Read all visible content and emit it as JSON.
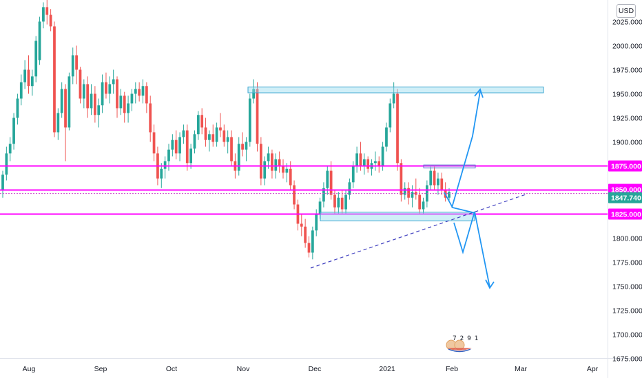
{
  "chart_data": {
    "type": "candlestick",
    "currency": "USD",
    "ylim": [
      1669,
      2036
    ],
    "y_ticks": [
      {
        "value": 2025,
        "label": "2025.000"
      },
      {
        "value": 2000,
        "label": "2000.000"
      },
      {
        "value": 1975,
        "label": "1975.000"
      },
      {
        "value": 1950,
        "label": "1950.000"
      },
      {
        "value": 1925,
        "label": "1925.000"
      },
      {
        "value": 1900,
        "label": "1900.000"
      },
      {
        "value": 1800,
        "label": "1800.000"
      },
      {
        "value": 1775,
        "label": "1775.000"
      },
      {
        "value": 1750,
        "label": "1750.000"
      },
      {
        "value": 1725,
        "label": "1725.000"
      },
      {
        "value": 1700,
        "label": "1700.000"
      },
      {
        "value": 1675,
        "label": "1675.000"
      }
    ],
    "x_ticks": [
      "Aug",
      "Sep",
      "Oct",
      "Nov",
      "Dec",
      "2021",
      "Feb",
      "Mar",
      "Apr"
    ],
    "price_labels": [
      {
        "value": 1875,
        "label": "1875.000",
        "color": "#ff00ff"
      },
      {
        "value": 1850,
        "label": "1850.000",
        "color": "#ff00ff"
      },
      {
        "value": 1847.74,
        "label": "1847.740",
        "color": "#26a69a"
      },
      {
        "value": 1825,
        "label": "1825.000",
        "color": "#ff00ff"
      }
    ],
    "candles": [
      [
        1850,
        1870,
        1842,
        1866
      ],
      [
        1866,
        1895,
        1860,
        1888
      ],
      [
        1888,
        1905,
        1880,
        1898
      ],
      [
        1898,
        1930,
        1892,
        1925
      ],
      [
        1925,
        1950,
        1918,
        1945
      ],
      [
        1945,
        1970,
        1938,
        1962
      ],
      [
        1962,
        1985,
        1955,
        1975
      ],
      [
        1975,
        1990,
        1950,
        1958
      ],
      [
        1958,
        1975,
        1948,
        1968
      ],
      [
        1968,
        2010,
        1962,
        2005
      ],
      [
        1985,
        2030,
        1980,
        2025
      ],
      [
        2025,
        2045,
        2018,
        2040
      ],
      [
        2040,
        2050,
        2022,
        2032
      ],
      [
        2032,
        2038,
        2015,
        2020
      ],
      [
        2020,
        2025,
        1905,
        1910
      ],
      [
        1910,
        1935,
        1902,
        1930
      ],
      [
        1930,
        1962,
        1925,
        1955
      ],
      [
        1955,
        1960,
        1880,
        1915
      ],
      [
        1915,
        1972,
        1912,
        1968
      ],
      [
        1968,
        1998,
        1960,
        1990
      ],
      [
        1990,
        2000,
        1960,
        1975
      ],
      [
        1975,
        1978,
        1940,
        1945
      ],
      [
        1945,
        1965,
        1935,
        1960
      ],
      [
        1960,
        1968,
        1925,
        1935
      ],
      [
        1935,
        1960,
        1928,
        1950
      ],
      [
        1950,
        1958,
        1920,
        1928
      ],
      [
        1928,
        1945,
        1915,
        1938
      ],
      [
        1938,
        1970,
        1930,
        1962
      ],
      [
        1962,
        1972,
        1945,
        1950
      ],
      [
        1950,
        1968,
        1940,
        1960
      ],
      [
        1960,
        1975,
        1950,
        1965
      ],
      [
        1965,
        1968,
        1925,
        1935
      ],
      [
        1935,
        1955,
        1928,
        1948
      ],
      [
        1948,
        1952,
        1920,
        1930
      ],
      [
        1930,
        1948,
        1920,
        1940
      ],
      [
        1940,
        1955,
        1932,
        1950
      ],
      [
        1950,
        1962,
        1940,
        1955
      ],
      [
        1955,
        1962,
        1942,
        1948
      ],
      [
        1948,
        1965,
        1940,
        1958
      ],
      [
        1958,
        1962,
        1930,
        1940
      ],
      [
        1940,
        1948,
        1900,
        1910
      ],
      [
        1910,
        1918,
        1880,
        1888
      ],
      [
        1888,
        1895,
        1855,
        1862
      ],
      [
        1862,
        1878,
        1852,
        1872
      ],
      [
        1872,
        1885,
        1862,
        1880
      ],
      [
        1880,
        1898,
        1870,
        1892
      ],
      [
        1892,
        1908,
        1885,
        1902
      ],
      [
        1902,
        1912,
        1882,
        1888
      ],
      [
        1888,
        1910,
        1880,
        1905
      ],
      [
        1905,
        1918,
        1898,
        1912
      ],
      [
        1912,
        1918,
        1870,
        1878
      ],
      [
        1878,
        1898,
        1872,
        1893
      ],
      [
        1893,
        1912,
        1888,
        1908
      ],
      [
        1908,
        1932,
        1902,
        1928
      ],
      [
        1928,
        1935,
        1908,
        1915
      ],
      [
        1915,
        1925,
        1895,
        1902
      ],
      [
        1902,
        1912,
        1890,
        1908
      ],
      [
        1908,
        1918,
        1895,
        1900
      ],
      [
        1900,
        1920,
        1895,
        1915
      ],
      [
        1915,
        1930,
        1905,
        1912
      ],
      [
        1912,
        1918,
        1895,
        1900
      ],
      [
        1900,
        1912,
        1888,
        1905
      ],
      [
        1905,
        1912,
        1875,
        1880
      ],
      [
        1880,
        1888,
        1862,
        1870
      ],
      [
        1870,
        1905,
        1865,
        1898
      ],
      [
        1898,
        1910,
        1885,
        1892
      ],
      [
        1892,
        1905,
        1880,
        1900
      ],
      [
        1900,
        1950,
        1895,
        1945
      ],
      [
        1945,
        1965,
        1940,
        1955
      ],
      [
        1955,
        1962,
        1890,
        1898
      ],
      [
        1898,
        1905,
        1855,
        1862
      ],
      [
        1862,
        1885,
        1855,
        1880
      ],
      [
        1880,
        1895,
        1872,
        1888
      ],
      [
        1888,
        1892,
        1862,
        1870
      ],
      [
        1870,
        1888,
        1862,
        1882
      ],
      [
        1882,
        1890,
        1868,
        1875
      ],
      [
        1875,
        1882,
        1862,
        1868
      ],
      [
        1868,
        1878,
        1858,
        1872
      ],
      [
        1872,
        1880,
        1850,
        1855
      ],
      [
        1855,
        1860,
        1830,
        1835
      ],
      [
        1835,
        1840,
        1808,
        1815
      ],
      [
        1815,
        1825,
        1802,
        1812
      ],
      [
        1812,
        1820,
        1790,
        1795
      ],
      [
        1795,
        1802,
        1780,
        1785
      ],
      [
        1785,
        1812,
        1778,
        1808
      ],
      [
        1808,
        1830,
        1802,
        1825
      ],
      [
        1825,
        1842,
        1820,
        1838
      ],
      [
        1838,
        1858,
        1832,
        1852
      ],
      [
        1852,
        1875,
        1845,
        1870
      ],
      [
        1870,
        1880,
        1840,
        1845
      ],
      [
        1845,
        1850,
        1825,
        1832
      ],
      [
        1832,
        1848,
        1825,
        1842
      ],
      [
        1842,
        1850,
        1825,
        1830
      ],
      [
        1830,
        1850,
        1825,
        1845
      ],
      [
        1845,
        1862,
        1840,
        1858
      ],
      [
        1858,
        1880,
        1852,
        1875
      ],
      [
        1875,
        1895,
        1868,
        1888
      ],
      [
        1888,
        1900,
        1870,
        1875
      ],
      [
        1875,
        1888,
        1866,
        1882
      ],
      [
        1882,
        1885,
        1868,
        1872
      ],
      [
        1872,
        1882,
        1865,
        1878
      ],
      [
        1878,
        1890,
        1870,
        1880
      ],
      [
        1880,
        1885,
        1868,
        1875
      ],
      [
        1875,
        1900,
        1870,
        1895
      ],
      [
        1895,
        1920,
        1890,
        1915
      ],
      [
        1915,
        1945,
        1910,
        1940
      ],
      [
        1940,
        1962,
        1935,
        1950
      ],
      [
        1950,
        1955,
        1870,
        1878
      ],
      [
        1878,
        1882,
        1838,
        1845
      ],
      [
        1845,
        1858,
        1840,
        1852
      ],
      [
        1852,
        1858,
        1835,
        1842
      ],
      [
        1842,
        1855,
        1832,
        1848
      ],
      [
        1848,
        1862,
        1840,
        1845
      ],
      [
        1845,
        1852,
        1825,
        1830
      ],
      [
        1830,
        1842,
        1825,
        1838
      ],
      [
        1838,
        1860,
        1832,
        1855
      ],
      [
        1855,
        1875,
        1850,
        1870
      ],
      [
        1870,
        1875,
        1850,
        1855
      ],
      [
        1855,
        1868,
        1845,
        1862
      ],
      [
        1862,
        1868,
        1845,
        1850
      ],
      [
        1850,
        1858,
        1838,
        1842
      ],
      [
        1842,
        1852,
        1838,
        1848
      ]
    ],
    "drawings": {
      "horizontal_lines": [
        1875,
        1850,
        1825
      ],
      "boxes": [
        {
          "y_top": 1957,
          "y_bottom": 1951
        },
        {
          "y_top": 1827,
          "y_bottom": 1818
        },
        {
          "y_top": 1876,
          "y_bottom": 1873
        }
      ]
    },
    "watermark_digits": "7 2 9 1"
  }
}
